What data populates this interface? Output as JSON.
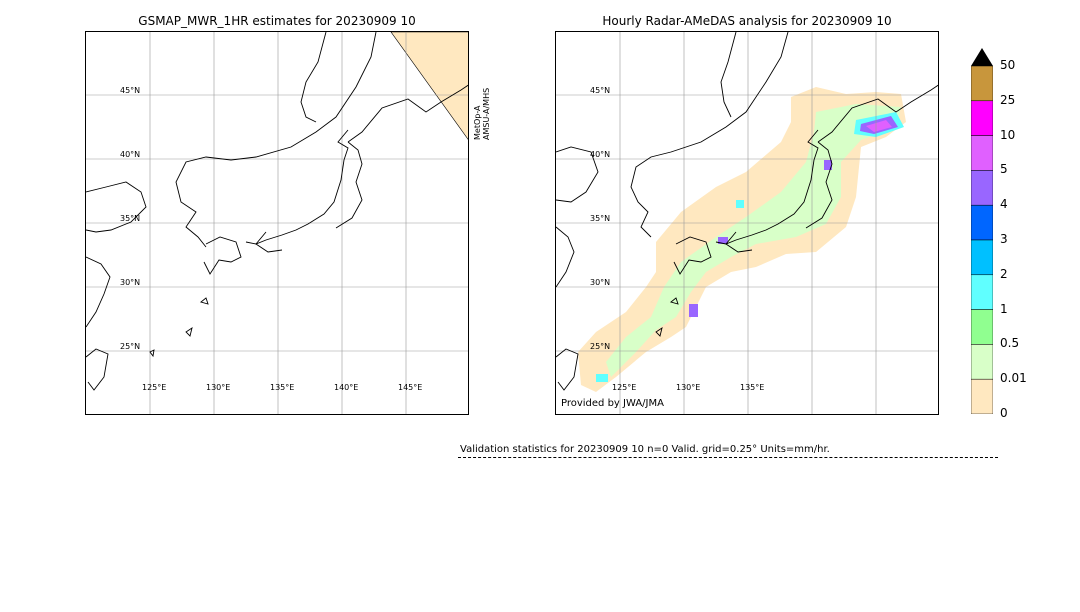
{
  "left_panel": {
    "title": "GSMAP_MWR_1HR estimates for 20230909 10",
    "lat_labels": [
      "45°N",
      "40°N",
      "35°N",
      "30°N",
      "25°N"
    ],
    "lon_labels": [
      "125°E",
      "130°E",
      "135°E",
      "140°E",
      "145°E"
    ],
    "satellite_label_1": "MetOp-A",
    "satellite_label_2": "AMSU-A/MHS"
  },
  "right_panel": {
    "title": "Hourly Radar-AMeDAS analysis for 20230909 10",
    "lat_labels": [
      "45°N",
      "40°N",
      "35°N",
      "30°N",
      "25°N"
    ],
    "lon_labels": [
      "125°E",
      "130°E",
      "135°E"
    ],
    "provider": "Provided by JWA/JMA"
  },
  "colorbar": {
    "labels": [
      "50",
      "25",
      "10",
      "5",
      "4",
      "3",
      "2",
      "1",
      "0.5",
      "0.01",
      "0"
    ],
    "colors": [
      "#c8963c",
      "#ff00ff",
      "#e060ff",
      "#9966ff",
      "#0066ff",
      "#00c0ff",
      "#60ffff",
      "#90ff90",
      "#d8ffc8",
      "#ffe8c0"
    ],
    "extend_color": "#000000"
  },
  "stats": {
    "text": "Validation statistics for 20230909 10  n=0 Valid. grid=0.25° Units=mm/hr."
  }
}
